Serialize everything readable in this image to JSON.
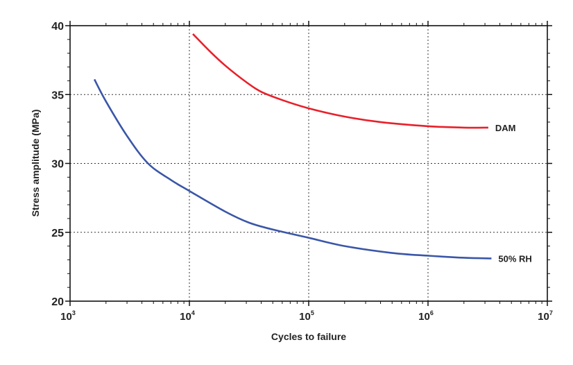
{
  "chart_data": {
    "type": "line",
    "xlabel": "Cycles to failure",
    "ylabel": "Stress amplitude (MPa)",
    "xscale": "log",
    "xlim": [
      1000,
      10000000
    ],
    "ylim": [
      20,
      40
    ],
    "x_ticks": [
      {
        "base": "10",
        "exp": "3"
      },
      {
        "base": "10",
        "exp": "4"
      },
      {
        "base": "10",
        "exp": "5"
      },
      {
        "base": "10",
        "exp": "6"
      },
      {
        "base": "10",
        "exp": "7"
      }
    ],
    "y_ticks": [
      "20",
      "25",
      "30",
      "35",
      "40"
    ],
    "grid": "dotted",
    "series": [
      {
        "name": "DAM",
        "color": "#e8202a",
        "x": [
          10700,
          15000,
          20000,
          30000,
          40000,
          60000,
          100000,
          200000,
          400000,
          1000000,
          2000000,
          3200000
        ],
        "y": [
          39.4,
          38.1,
          37.1,
          35.9,
          35.2,
          34.6,
          34.0,
          33.4,
          33.0,
          32.7,
          32.6,
          32.6
        ]
      },
      {
        "name": "50% RH",
        "color": "#3a56a8",
        "x": [
          1600,
          2000,
          3000,
          4500,
          7000,
          10000,
          20000,
          31600,
          50000,
          100000,
          200000,
          500000,
          1000000,
          2000000,
          3400000
        ],
        "y": [
          36.1,
          34.5,
          32.0,
          30.0,
          28.8,
          28.0,
          26.5,
          25.7,
          25.2,
          24.6,
          24.0,
          23.5,
          23.3,
          23.15,
          23.1
        ]
      }
    ]
  }
}
